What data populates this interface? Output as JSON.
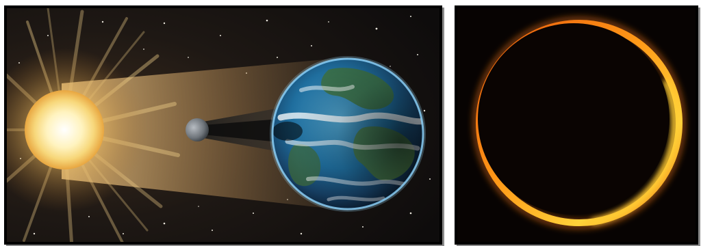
{
  "panels": [
    {
      "id": "solar-eclipse-diagram",
      "depicts": [
        "sun",
        "moon",
        "earth",
        "moon-shadow-cone",
        "sunlight-beam",
        "starfield"
      ],
      "colors": {
        "space": "#15110f",
        "sun_core": "#fff6c8",
        "sun_glow": "#f5c65a",
        "earth_ocean": "#1d6fa3",
        "earth_atmosphere": "#7fd0ff",
        "moon": "#8a8f96"
      }
    },
    {
      "id": "annular-eclipse-photo",
      "depicts": [
        "ring-of-fire"
      ],
      "colors": {
        "background": "#050201",
        "ring_outer": "#d84a08",
        "ring_inner": "#ffd23a",
        "moon_disc": "#0a0402"
      }
    }
  ]
}
